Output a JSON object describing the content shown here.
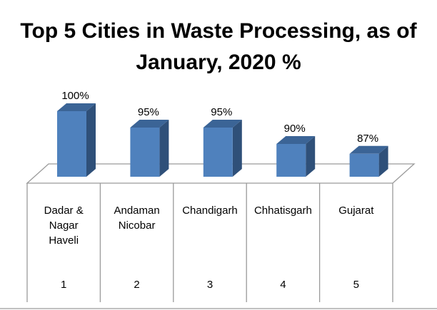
{
  "chart_data": {
    "type": "bar",
    "title_lines": [
      "Top 5 Cities in Waste Processing, as of",
      "January, 2020 %"
    ],
    "categories": [
      "Dadar & Nagar Haveli",
      "Andaman Nicobar",
      "Chandigarh",
      "Chhatisgarh",
      "Gujarat"
    ],
    "category_lines": [
      [
        "Dadar &",
        "Nagar",
        "Haveli"
      ],
      [
        "Andaman",
        "Nicobar"
      ],
      [
        "Chandigarh"
      ],
      [
        "Chhatisgarh"
      ],
      [
        "Gujarat"
      ]
    ],
    "ranks": [
      "1",
      "2",
      "3",
      "4",
      "5"
    ],
    "values": [
      100,
      95,
      95,
      90,
      87
    ],
    "data_labels": [
      "100%",
      "95%",
      "95%",
      "90%",
      "87%"
    ],
    "ylim": [
      80,
      100
    ],
    "xlabel": "",
    "ylabel": "",
    "grid": false,
    "colors": {
      "front": "#4f81bd",
      "side": "#2f5079",
      "top": "#3b6496",
      "lines": "#9a9a9a"
    }
  }
}
